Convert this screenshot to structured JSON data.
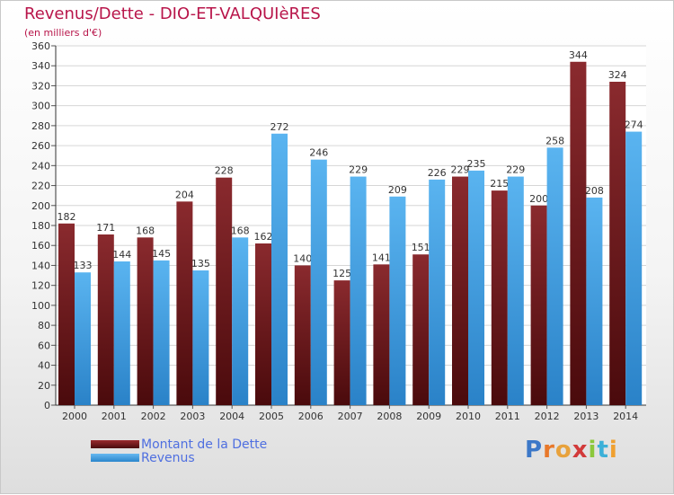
{
  "chart_data": {
    "type": "bar",
    "title": "Revenus/Dette - DIO-ET-VALQUIèRES",
    "subtitle": "(en milliers d'€)",
    "categories": [
      "2000",
      "2001",
      "2002",
      "2003",
      "2004",
      "2005",
      "2006",
      "2007",
      "2008",
      "2009",
      "2010",
      "2011",
      "2012",
      "2013",
      "2014"
    ],
    "series": [
      {
        "name": "Montant de la Dette",
        "values": [
          182,
          171,
          168,
          204,
          228,
          162,
          140,
          125,
          141,
          151,
          229,
          215,
          200,
          344,
          324
        ],
        "color": "#7a1e22"
      },
      {
        "name": "Revenus",
        "values": [
          133,
          144,
          145,
          135,
          168,
          272,
          246,
          229,
          209,
          226,
          235,
          229,
          258,
          208,
          274
        ],
        "color": "#4aa3e6"
      }
    ],
    "ylim": [
      0,
      360
    ],
    "ytick_step": 20,
    "grid": true,
    "legend_position": "bottom-left"
  },
  "brand": {
    "letters": [
      "P",
      "r",
      "o",
      "x",
      "i",
      "t",
      "i"
    ],
    "colors": [
      "#3c78c8",
      "#e8782a",
      "#e8a23c",
      "#d23a3a",
      "#8cc83c",
      "#3cb0d8",
      "#f0a030"
    ]
  }
}
